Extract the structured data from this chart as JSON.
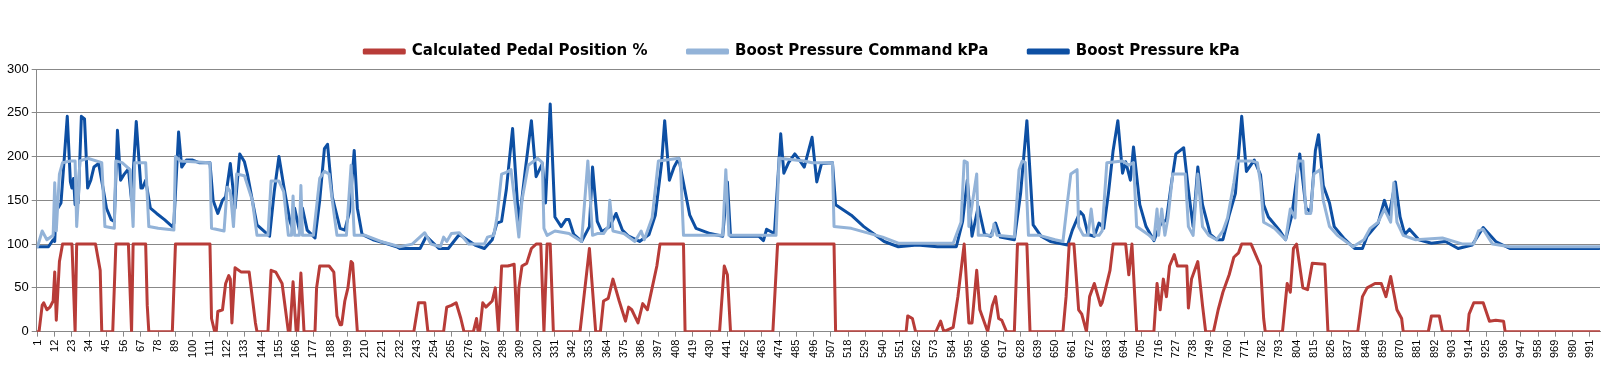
{
  "chart_data": {
    "type": "line",
    "xlim": [
      0.5,
      997.5
    ],
    "ylim": [
      0,
      300
    ],
    "yticks": [
      0,
      50,
      100,
      150,
      200,
      250,
      300
    ],
    "xticks": [
      1,
      12,
      23,
      34,
      45,
      56,
      67,
      78,
      89,
      100,
      111,
      122,
      133,
      144,
      155,
      166,
      177,
      188,
      199,
      210,
      221,
      232,
      243,
      254,
      265,
      276,
      287,
      298,
      309,
      320,
      331,
      342,
      353,
      364,
      375,
      386,
      397,
      408,
      419,
      430,
      441,
      452,
      463,
      474,
      485,
      496,
      507,
      518,
      529,
      540,
      551,
      562,
      573,
      584,
      595,
      606,
      617,
      628,
      639,
      650,
      661,
      672,
      683,
      694,
      705,
      716,
      727,
      738,
      749,
      760,
      771,
      782,
      793,
      804,
      815,
      826,
      837,
      848,
      859,
      870,
      881,
      892,
      903,
      914,
      925,
      936,
      947,
      958,
      969,
      980,
      991
    ],
    "grid": "y",
    "legend": "top",
    "marker": "none",
    "line_style": "solid",
    "series": [
      {
        "name": "Calculated Pedal Position %",
        "color": "#b83c38",
        "x": [
          1,
          2,
          4,
          5,
          7,
          9,
          11,
          12,
          13,
          15,
          17,
          23,
          25,
          26,
          38,
          41,
          42,
          49,
          51,
          59,
          61,
          62,
          70,
          71,
          72,
          87,
          89,
          111,
          112,
          114,
          115,
          116,
          119,
          121,
          123,
          124,
          125,
          127,
          131,
          136,
          140,
          141,
          148,
          150,
          153,
          157,
          161,
          162,
          164,
          166,
          167,
          169,
          171,
          178,
          179,
          181,
          187,
          190,
          192,
          194,
          195,
          197,
          199,
          201,
          202,
          205,
          241,
          244,
          248,
          250,
          260,
          262,
          265,
          268,
          271,
          273,
          279,
          281,
          282,
          283,
          285,
          287,
          291,
          293,
          295,
          297,
          301,
          305,
          307,
          308,
          310,
          313,
          316,
          319,
          322,
          324,
          326,
          328,
          330,
          347,
          353,
          357,
          360,
          362,
          365,
          368,
          372,
          376,
          378,
          380,
          384,
          387,
          390,
          393,
          396,
          398,
          413,
          414,
          436,
          439,
          441,
          443,
          470,
          473,
          509,
          510,
          555,
          556,
          559,
          561,
          574,
          577,
          579,
          585,
          588,
          592,
          595,
          597,
          600,
          602,
          607,
          610,
          612,
          614,
          616,
          619,
          624,
          626,
          632,
          634,
          655,
          657,
          659,
          662,
          665,
          667,
          670,
          672,
          675,
          679,
          680,
          685,
          687,
          695,
          697,
          699,
          702,
          713,
          715,
          717,
          719,
          721,
          723,
          726,
          728,
          734,
          735,
          737,
          741,
          744,
          746,
          751,
          754,
          757,
          761,
          764,
          767,
          769,
          775,
          781,
          783,
          784,
          795,
          798,
          800,
          802,
          804,
          808,
          811,
          814,
          822,
          824,
          843,
          846,
          849,
          854,
          858,
          861,
          864,
          868,
          871,
          872,
          888,
          890,
          895,
          897,
          913,
          914,
          917,
          923,
          927,
          931,
          936,
          937,
          997
        ],
        "values": [
          0,
          0,
          30,
          33,
          25,
          28,
          35,
          68,
          13,
          80,
          100,
          100,
          0,
          100,
          100,
          70,
          0,
          0,
          100,
          100,
          0,
          100,
          100,
          30,
          0,
          0,
          100,
          100,
          15,
          0,
          0,
          23,
          25,
          55,
          64,
          60,
          10,
          73,
          68,
          68,
          10,
          0,
          0,
          70,
          68,
          55,
          0,
          0,
          57,
          0,
          0,
          67,
          0,
          0,
          50,
          75,
          75,
          68,
          18,
          8,
          8,
          35,
          50,
          80,
          78,
          0,
          0,
          33,
          33,
          0,
          0,
          28,
          30,
          33,
          15,
          0,
          0,
          15,
          0,
          0,
          33,
          28,
          35,
          50,
          0,
          75,
          75,
          77,
          0,
          50,
          75,
          78,
          95,
          100,
          100,
          0,
          100,
          100,
          0,
          0,
          95,
          0,
          0,
          35,
          38,
          60,
          35,
          12,
          28,
          25,
          10,
          32,
          25,
          50,
          75,
          100,
          100,
          0,
          0,
          75,
          65,
          0,
          0,
          100,
          100,
          0,
          0,
          18,
          15,
          0,
          0,
          12,
          0,
          5,
          40,
          100,
          10,
          10,
          70,
          25,
          0,
          30,
          40,
          15,
          13,
          0,
          0,
          100,
          100,
          0,
          0,
          40,
          100,
          100,
          25,
          20,
          0,
          40,
          55,
          30,
          33,
          70,
          100,
          100,
          65,
          100,
          0,
          0,
          55,
          25,
          60,
          40,
          75,
          88,
          75,
          75,
          27,
          60,
          80,
          30,
          0,
          0,
          25,
          45,
          65,
          85,
          90,
          100,
          100,
          75,
          15,
          0,
          0,
          55,
          45,
          95,
          100,
          50,
          48,
          78,
          77,
          0,
          0,
          40,
          50,
          55,
          55,
          40,
          63,
          25,
          15,
          0,
          0,
          18,
          18,
          0,
          0,
          20,
          33,
          33,
          12,
          13,
          12,
          0,
          0
        ]
      },
      {
        "name": "Boost Pressure Command kPa",
        "color": "#93b3d8",
        "x": [
          1,
          4,
          7,
          11,
          12,
          13,
          15,
          17,
          22,
          25,
          26,
          27,
          28,
          33,
          42,
          44,
          50,
          51,
          55,
          60,
          62,
          63,
          70,
          72,
          78,
          88,
          89,
          92,
          111,
          112,
          120,
          122,
          124,
          126,
          128,
          133,
          138,
          141,
          148,
          150,
          155,
          158,
          161,
          163,
          164,
          165,
          168,
          169,
          170,
          177,
          181,
          184,
          187,
          189,
          192,
          198,
          201,
          203,
          210,
          220,
          232,
          240,
          248,
          252,
          258,
          260,
          262,
          265,
          270,
          276,
          286,
          288,
          292,
          294,
          297,
          300,
          303,
          306,
          308,
          310,
          314,
          320,
          323,
          324,
          326,
          331,
          340,
          348,
          352,
          355,
          358,
          362,
          365,
          366,
          368,
          375,
          382,
          386,
          388,
          393,
          397,
          410,
          411,
          413,
          430,
          438,
          440,
          442,
          460,
          472,
          474,
          490,
          495,
          508,
          509,
          520,
          540,
          550,
          585,
          590,
          592,
          594,
          595,
          600,
          601,
          610,
          611,
          613,
          624,
          627,
          629,
          631,
          633,
          640,
          650,
          655,
          658,
          660,
          664,
          665,
          668,
          671,
          673,
          675,
          678,
          680,
          683,
          693,
          697,
          700,
          702,
          710,
          713,
          715,
          716,
          718,
          720,
          722,
          725,
          733,
          735,
          738,
          741,
          744,
          748,
          753,
          757,
          760,
          764,
          766,
          775,
          779,
          781,
          783,
          790,
          797,
          800,
          803,
          805,
          808,
          810,
          813,
          815,
          819,
          821,
          825,
          830,
          840,
          847,
          851,
          856,
          860,
          864,
          866,
          868,
          872,
          880,
          897,
          910,
          917,
          920,
          923,
          929,
          940,
          997
        ],
        "values": [
          97,
          115,
          105,
          110,
          170,
          115,
          180,
          193,
          195,
          195,
          120,
          150,
          195,
          198,
          193,
          120,
          118,
          195,
          193,
          185,
          120,
          193,
          193,
          120,
          118,
          116,
          200,
          195,
          193,
          118,
          115,
          165,
          160,
          120,
          180,
          178,
          150,
          110,
          110,
          172,
          172,
          160,
          110,
          110,
          155,
          110,
          110,
          167,
          110,
          110,
          175,
          183,
          180,
          150,
          110,
          110,
          190,
          110,
          110,
          103,
          97,
          100,
          113,
          100,
          97,
          108,
          103,
          112,
          113,
          100,
          100,
          108,
          110,
          130,
          180,
          182,
          185,
          140,
          108,
          150,
          190,
          198,
          193,
          118,
          110,
          115,
          112,
          103,
          195,
          110,
          112,
          112,
          120,
          150,
          115,
          112,
          103,
          115,
          105,
          130,
          195,
          198,
          193,
          110,
          110,
          110,
          185,
          110,
          110,
          110,
          198,
          195,
          193,
          193,
          120,
          118,
          108,
          101,
          101,
          125,
          195,
          193,
          120,
          180,
          110,
          110,
          123,
          110,
          108,
          185,
          195,
          193,
          110,
          110,
          105,
          103,
          150,
          180,
          185,
          120,
          110,
          110,
          140,
          110,
          110,
          115,
          193,
          195,
          190,
          193,
          120,
          110,
          105,
          140,
          110,
          140,
          110,
          130,
          180,
          180,
          120,
          110,
          180,
          120,
          110,
          105,
          115,
          130,
          170,
          195,
          195,
          193,
          170,
          125,
          118,
          105,
          140,
          130,
          195,
          195,
          135,
          135,
          180,
          185,
          150,
          120,
          110,
          97,
          105,
          118,
          125,
          140,
          125,
          170,
          125,
          110,
          105,
          107,
          100,
          100,
          115,
          117,
          100,
          97,
          97
        ]
      },
      {
        "name": "Boost Pressure kPa",
        "color": "#0d4fa3",
        "x": [
          1,
          8,
          11,
          12,
          13,
          14,
          16,
          18,
          20,
          22,
          23,
          24,
          25,
          27,
          29,
          31,
          33,
          35,
          37,
          40,
          43,
          45,
          48,
          50,
          52,
          54,
          56,
          59,
          61,
          64,
          67,
          68,
          70,
          73,
          77,
          82,
          87,
          88,
          91,
          93,
          96,
          100,
          104,
          111,
          113,
          116,
          119,
          121,
          124,
          127,
          130,
          133,
          135,
          138,
          141,
          146,
          149,
          152,
          155,
          158,
          162,
          164,
          165,
          168,
          170,
          173,
          178,
          181,
          184,
          186,
          189,
          194,
          197,
          200,
          203,
          205,
          208,
          215,
          223,
          230,
          232,
          245,
          249,
          257,
          263,
          270,
          280,
          286,
          291,
          294,
          297,
          300,
          304,
          308,
          312,
          316,
          319,
          323,
          325,
          328,
          331,
          335,
          338,
          340,
          343,
          348,
          353,
          355,
          358,
          361,
          366,
          370,
          374,
          378,
          385,
          391,
          395,
          399,
          401,
          404,
          407,
          410,
          412,
          417,
          421,
          430,
          438,
          441,
          443,
          451,
          461,
          464,
          466,
          471,
          475,
          477,
          480,
          484,
          487,
          490,
          495,
          498,
          501,
          508,
          510,
          520,
          528,
          541,
          550,
          562,
          575,
          587,
          591,
          594,
          597,
          601,
          605,
          609,
          612,
          615,
          624,
          628,
          632,
          636,
          641,
          647,
          658,
          661,
          666,
          668,
          671,
          675,
          678,
          681,
          684,
          687,
          690,
          693,
          695,
          698,
          700,
          704,
          708,
          713,
          717,
          721,
          724,
          727,
          732,
          735,
          738,
          741,
          744,
          749,
          753,
          757,
          761,
          765,
          769,
          772,
          777,
          781,
          783,
          786,
          793,
          797,
          801,
          806,
          810,
          813,
          816,
          818,
          821,
          825,
          828,
          834,
          841,
          846,
          849,
          856,
          860,
          863,
          867,
          870,
          873,
          876,
          882,
          890,
          899,
          907,
          916,
          923,
          931,
          940,
          997
        ],
        "values": [
          97,
          97,
          105,
          103,
          145,
          141,
          147,
          196,
          246,
          171,
          164,
          175,
          145,
          147,
          246,
          243,
          164,
          173,
          188,
          192,
          162,
          141,
          128,
          126,
          230,
          173,
          179,
          186,
          150,
          240,
          164,
          164,
          173,
          141,
          135,
          128,
          120,
          124,
          228,
          188,
          196,
          196,
          193,
          193,
          150,
          135,
          150,
          154,
          192,
          141,
          203,
          194,
          179,
          150,
          122,
          114,
          109,
          160,
          200,
          167,
          126,
          116,
          141,
          116,
          141,
          116,
          107,
          150,
          209,
          214,
          154,
          118,
          116,
          137,
          207,
          141,
          111,
          105,
          101,
          97,
          95,
          95,
          109,
          95,
          95,
          111,
          99,
          95,
          105,
          124,
          126,
          162,
          232,
          122,
          183,
          241,
          177,
          192,
          147,
          260,
          131,
          120,
          128,
          128,
          111,
          103,
          120,
          188,
          126,
          114,
          120,
          135,
          116,
          109,
          103,
          111,
          133,
          192,
          241,
          173,
          188,
          198,
          179,
          133,
          118,
          112,
          109,
          171,
          109,
          109,
          109,
          104,
          117,
          112,
          226,
          181,
          193,
          203,
          196,
          188,
          222,
          171,
          192,
          193,
          145,
          133,
          120,
          103,
          97,
          99,
          97,
          97,
          126,
          173,
          109,
          143,
          111,
          109,
          124,
          108,
          105,
          158,
          241,
          122,
          109,
          103,
          99,
          116,
          137,
          133,
          111,
          109,
          124,
          118,
          158,
          207,
          241,
          181,
          194,
          173,
          211,
          145,
          120,
          104,
          122,
          128,
          167,
          203,
          210,
          162,
          120,
          188,
          145,
          111,
          105,
          105,
          133,
          158,
          246,
          183,
          196,
          179,
          145,
          131,
          116,
          105,
          133,
          203,
          141,
          137,
          207,
          225,
          167,
          147,
          120,
          107,
          95,
          95,
          109,
          124,
          150,
          133,
          171,
          131,
          111,
          117,
          105,
          101,
          103,
          95,
          99,
          119,
          103,
          95,
          95
        ]
      }
    ]
  }
}
